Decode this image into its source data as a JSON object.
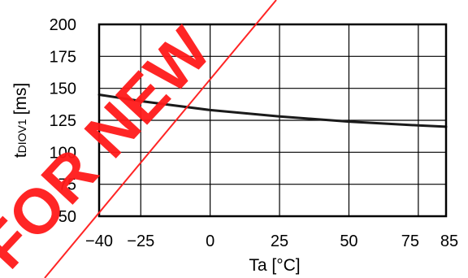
{
  "chart_data": {
    "type": "line",
    "xlabel": "Ta [°C]",
    "ylabel_main": "t",
    "ylabel_sub": "DIOV1",
    "ylabel_unit": "[ms]",
    "xlim": [
      -40,
      85
    ],
    "ylim": [
      50,
      200
    ],
    "x_ticks": [
      -40,
      -25,
      0,
      25,
      50,
      75,
      85
    ],
    "x_tick_labels": [
      "−40",
      "−25",
      "0",
      "25",
      "50",
      "75",
      "85"
    ],
    "y_ticks": [
      50,
      75,
      100,
      125,
      150,
      175,
      200
    ],
    "grid": true,
    "series": [
      {
        "x": [
          -40,
          -25,
          0,
          25,
          50,
          75,
          85
        ],
        "values": [
          145,
          140,
          133,
          128,
          124,
          121,
          120
        ],
        "color": "#1a1a1a"
      }
    ],
    "watermark": {
      "text": "FOR NEW",
      "color": "#ff1a1a"
    }
  }
}
